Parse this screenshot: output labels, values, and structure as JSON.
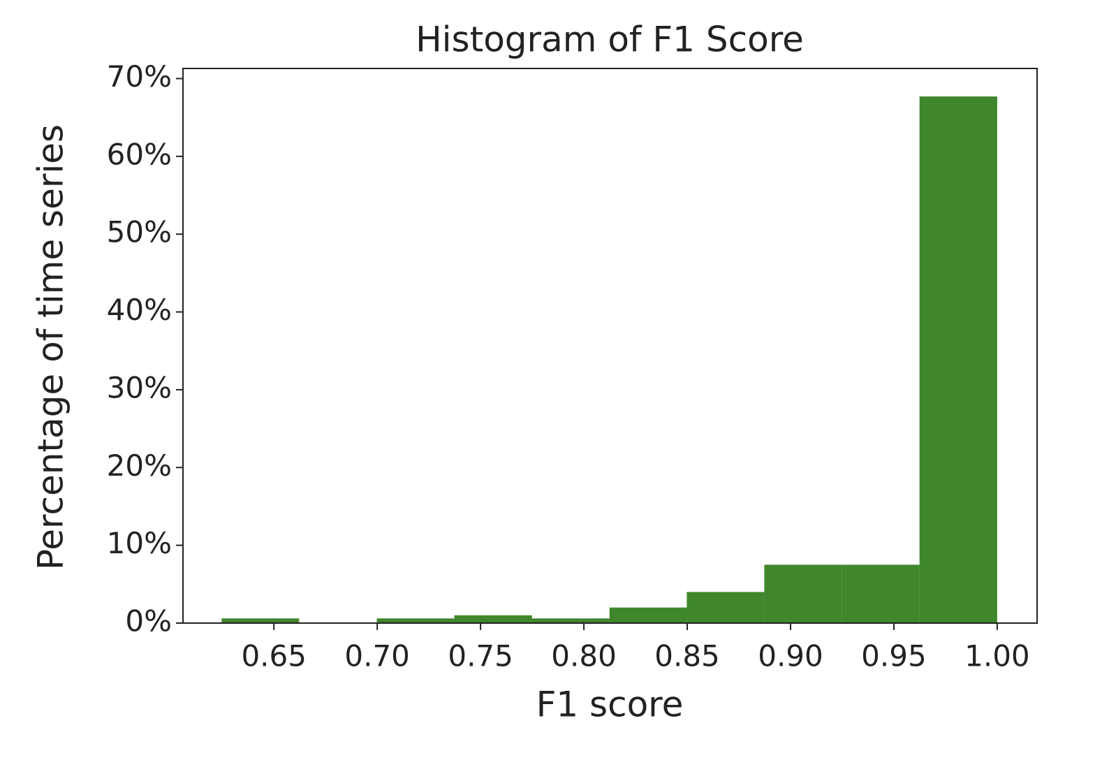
{
  "chart_data": {
    "type": "histogram",
    "title": "Histogram of F1 Score",
    "x_label": "F1 score",
    "y_label": "Percentage of time series",
    "bins": [
      0.6247,
      0.6622,
      0.6998,
      0.7373,
      0.7749,
      0.8124,
      0.8498,
      0.8873,
      0.9249,
      0.9624,
      1.0
    ],
    "values": [
      0.6,
      0,
      0.6,
      1.0,
      0.6,
      2.0,
      4.0,
      7.5,
      7.5,
      67.7
    ],
    "color": "#3f862c",
    "xlim": [
      0.606,
      1.0193
    ],
    "xticks": [
      0.65,
      {
        "value": 0.7,
        "label": "0.70"
      },
      0.75,
      {
        "value": 0.8,
        "label": "0.80"
      },
      0.85,
      {
        "value": 0.9,
        "label": "0.90"
      },
      0.95,
      {
        "value": 1.0,
        "label": "1.00"
      }
    ],
    "ylim": [
      0,
      71.3
    ],
    "yticks": [
      {
        "value": 0,
        "label": "0%"
      },
      {
        "value": 10,
        "label": "10%"
      },
      {
        "value": 20,
        "label": "20%"
      },
      {
        "value": 30,
        "label": "30%"
      },
      {
        "value": 40,
        "label": "40%"
      },
      {
        "value": 50,
        "label": "50%"
      },
      {
        "value": 60,
        "label": "60%"
      },
      {
        "value": 70,
        "label": "70%"
      }
    ],
    "grid": false
  }
}
